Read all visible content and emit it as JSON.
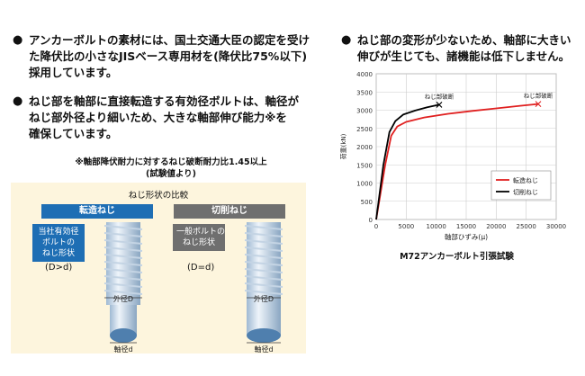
{
  "bullets_left": [
    {
      "lines": [
        "アンカーボルトの素材には、国土交通大臣の認定を受け",
        "た降伏比の小さなJISベース専用材を(降伏比75%以下)",
        "採用しています。"
      ]
    },
    {
      "lines": [
        "ねじ部を軸部に直接転造する有効径ボルトは、軸径が",
        "ねじ部外径より細いため、大きな軸部伸び能力※を",
        "確保しています。"
      ]
    }
  ],
  "bullet_right": {
    "lines": [
      "ねじ部の変形が少ないため、軸部に大きい",
      "伸びが生じても、諸機能は低下しません。"
    ]
  },
  "bullet_marker": "●",
  "note": {
    "line1": "※軸部降伏耐力に対するねじ破断耐力比1.45以上",
    "line2": "(試験値より)"
  },
  "comparison": {
    "title": "ねじ形状の比較",
    "rolled": {
      "header": "転造ねじ",
      "label_lines": [
        "当社有効径",
        "ボルトの",
        "ねじ形状"
      ],
      "relation": "(D>d)",
      "outer": "外径D",
      "shaft": "軸径d"
    },
    "cut": {
      "header": "切削ねじ",
      "label_lines": [
        "一般ボルトの",
        "ねじ形状"
      ],
      "relation": "(D=d)",
      "outer": "外径D",
      "shaft": "軸径d"
    },
    "colors": {
      "rolled": "#1e6eb4",
      "cut": "#6f6f6f",
      "background": "#fdf5dd"
    }
  },
  "chart_caption": "M72アンカーボルト引張試験",
  "chart_data": {
    "type": "line",
    "title": "",
    "xlabel": "軸部ひずみ(μ)",
    "ylabel": "荷重(kN)",
    "xlim": [
      0,
      30000
    ],
    "ylim": [
      0,
      4000
    ],
    "xticks": [
      "0",
      "5000",
      "10000",
      "15000",
      "20000",
      "25000",
      "30000"
    ],
    "yticks": [
      "0",
      "500",
      "1000",
      "1500",
      "2000",
      "2500",
      "3000",
      "3500",
      "4000"
    ],
    "grid": true,
    "legend": "bottom-right",
    "series": [
      {
        "name": "転造ねじ",
        "color": "#e02020",
        "x": [
          0,
          1500,
          2500,
          3500,
          5000,
          8000,
          12000,
          16000,
          20000,
          24000,
          27000
        ],
        "y": [
          0,
          1500,
          2300,
          2550,
          2680,
          2800,
          2900,
          2980,
          3050,
          3120,
          3170
        ]
      },
      {
        "name": "切削ねじ",
        "color": "#000000",
        "x": [
          0,
          1200,
          2200,
          3200,
          4500,
          6500,
          8500,
          10500
        ],
        "y": [
          0,
          1500,
          2400,
          2700,
          2880,
          2990,
          3080,
          3150
        ]
      }
    ],
    "annotations": [
      {
        "text": "ねじ部破断",
        "x": 10500,
        "y": 3150
      },
      {
        "text": "ねじ部破断",
        "x": 27000,
        "y": 3170
      }
    ]
  }
}
